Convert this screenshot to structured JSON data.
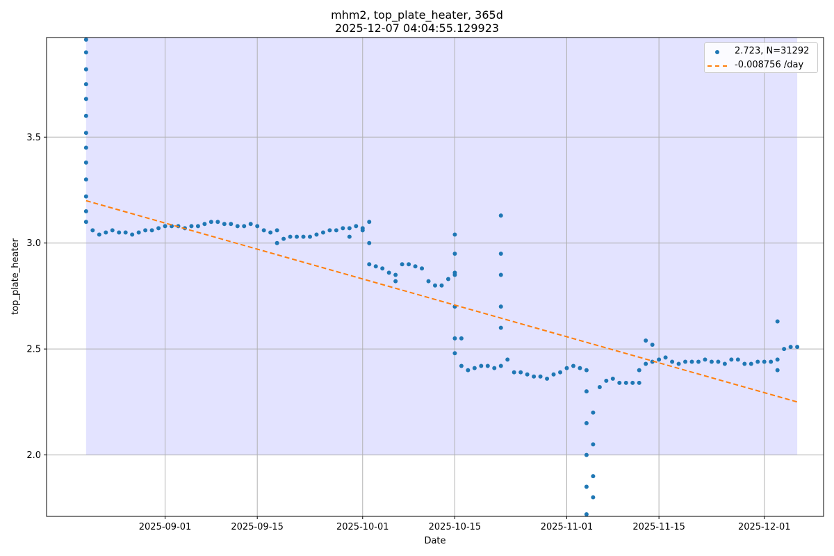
{
  "chart_data": {
    "type": "scatter",
    "title": "mhm2, top_plate_heater, 365d",
    "subtitle": "2025-12-07 04:04:55.129923",
    "xlabel": "Date",
    "ylabel": "top_plate_heater",
    "xlim": [
      "2025-08-14",
      "2025-12-10"
    ],
    "ylim": [
      1.71,
      3.97
    ],
    "x_ticks": [
      "2025-09-01",
      "2025-09-15",
      "2025-10-01",
      "2025-10-15",
      "2025-11-01",
      "2025-11-15",
      "2025-12-01"
    ],
    "y_ticks": [
      2.0,
      2.5,
      3.0,
      3.5
    ],
    "grid": true,
    "legend_position": "upper right",
    "shaded_band": {
      "x": [
        "2025-08-20",
        "2025-12-06"
      ],
      "y": [
        2.0,
        3.97
      ],
      "color": "#e3e3ff"
    },
    "series": [
      {
        "name": "2.723, N=31292",
        "type": "scatter",
        "color": "#1f77b4",
        "points": [
          [
            "2025-08-20",
            3.96
          ],
          [
            "2025-08-20",
            3.9
          ],
          [
            "2025-08-20",
            3.82
          ],
          [
            "2025-08-20",
            3.75
          ],
          [
            "2025-08-20",
            3.68
          ],
          [
            "2025-08-20",
            3.6
          ],
          [
            "2025-08-20",
            3.52
          ],
          [
            "2025-08-20",
            3.45
          ],
          [
            "2025-08-20",
            3.38
          ],
          [
            "2025-08-20",
            3.3
          ],
          [
            "2025-08-20",
            3.22
          ],
          [
            "2025-08-20",
            3.15
          ],
          [
            "2025-08-20",
            3.1
          ],
          [
            "2025-08-21",
            3.06
          ],
          [
            "2025-08-22",
            3.04
          ],
          [
            "2025-08-23",
            3.05
          ],
          [
            "2025-08-24",
            3.06
          ],
          [
            "2025-08-25",
            3.05
          ],
          [
            "2025-08-26",
            3.05
          ],
          [
            "2025-08-27",
            3.04
          ],
          [
            "2025-08-28",
            3.05
          ],
          [
            "2025-08-29",
            3.06
          ],
          [
            "2025-08-30",
            3.06
          ],
          [
            "2025-08-31",
            3.07
          ],
          [
            "2025-09-01",
            3.08
          ],
          [
            "2025-09-02",
            3.08
          ],
          [
            "2025-09-03",
            3.08
          ],
          [
            "2025-09-04",
            3.07
          ],
          [
            "2025-09-05",
            3.08
          ],
          [
            "2025-09-06",
            3.08
          ],
          [
            "2025-09-07",
            3.09
          ],
          [
            "2025-09-08",
            3.1
          ],
          [
            "2025-09-09",
            3.1
          ],
          [
            "2025-09-10",
            3.09
          ],
          [
            "2025-09-11",
            3.09
          ],
          [
            "2025-09-12",
            3.08
          ],
          [
            "2025-09-13",
            3.08
          ],
          [
            "2025-09-14",
            3.09
          ],
          [
            "2025-09-15",
            3.08
          ],
          [
            "2025-09-16",
            3.06
          ],
          [
            "2025-09-17",
            3.05
          ],
          [
            "2025-09-18",
            3.06
          ],
          [
            "2025-09-18",
            3.0
          ],
          [
            "2025-09-19",
            3.02
          ],
          [
            "2025-09-20",
            3.03
          ],
          [
            "2025-09-21",
            3.03
          ],
          [
            "2025-09-22",
            3.03
          ],
          [
            "2025-09-23",
            3.03
          ],
          [
            "2025-09-24",
            3.04
          ],
          [
            "2025-09-25",
            3.05
          ],
          [
            "2025-09-26",
            3.06
          ],
          [
            "2025-09-27",
            3.06
          ],
          [
            "2025-09-28",
            3.07
          ],
          [
            "2025-09-29",
            3.07
          ],
          [
            "2025-09-29",
            3.03
          ],
          [
            "2025-09-30",
            3.08
          ],
          [
            "2025-10-01",
            3.07
          ],
          [
            "2025-10-01",
            3.06
          ],
          [
            "2025-10-02",
            3.1
          ],
          [
            "2025-10-02",
            3.0
          ],
          [
            "2025-10-02",
            2.9
          ],
          [
            "2025-10-03",
            2.89
          ],
          [
            "2025-10-04",
            2.88
          ],
          [
            "2025-10-05",
            2.86
          ],
          [
            "2025-10-06",
            2.85
          ],
          [
            "2025-10-06",
            2.82
          ],
          [
            "2025-10-07",
            2.9
          ],
          [
            "2025-10-08",
            2.9
          ],
          [
            "2025-10-09",
            2.89
          ],
          [
            "2025-10-10",
            2.88
          ],
          [
            "2025-10-11",
            2.82
          ],
          [
            "2025-10-12",
            2.8
          ],
          [
            "2025-10-13",
            2.8
          ],
          [
            "2025-10-14",
            2.83
          ],
          [
            "2025-10-15",
            2.86
          ],
          [
            "2025-10-15",
            2.95
          ],
          [
            "2025-10-15",
            3.04
          ],
          [
            "2025-10-15",
            2.85
          ],
          [
            "2025-10-15",
            2.7
          ],
          [
            "2025-10-15",
            2.55
          ],
          [
            "2025-10-15",
            2.48
          ],
          [
            "2025-10-16",
            2.42
          ],
          [
            "2025-10-16",
            2.55
          ],
          [
            "2025-10-17",
            2.4
          ],
          [
            "2025-10-18",
            2.41
          ],
          [
            "2025-10-19",
            2.42
          ],
          [
            "2025-10-20",
            2.42
          ],
          [
            "2025-10-21",
            2.41
          ],
          [
            "2025-10-22",
            2.42
          ],
          [
            "2025-10-22",
            2.7
          ],
          [
            "2025-10-22",
            2.95
          ],
          [
            "2025-10-22",
            3.13
          ],
          [
            "2025-10-22",
            2.85
          ],
          [
            "2025-10-22",
            2.6
          ],
          [
            "2025-10-23",
            2.45
          ],
          [
            "2025-10-24",
            2.39
          ],
          [
            "2025-10-25",
            2.39
          ],
          [
            "2025-10-26",
            2.38
          ],
          [
            "2025-10-27",
            2.37
          ],
          [
            "2025-10-28",
            2.37
          ],
          [
            "2025-10-29",
            2.36
          ],
          [
            "2025-10-30",
            2.38
          ],
          [
            "2025-10-31",
            2.39
          ],
          [
            "2025-11-01",
            2.41
          ],
          [
            "2025-11-02",
            2.42
          ],
          [
            "2025-11-03",
            2.41
          ],
          [
            "2025-11-04",
            2.4
          ],
          [
            "2025-11-04",
            2.3
          ],
          [
            "2025-11-04",
            2.15
          ],
          [
            "2025-11-04",
            2.0
          ],
          [
            "2025-11-04",
            1.85
          ],
          [
            "2025-11-04",
            1.72
          ],
          [
            "2025-11-05",
            1.8
          ],
          [
            "2025-11-05",
            1.9
          ],
          [
            "2025-11-05",
            2.05
          ],
          [
            "2025-11-05",
            2.2
          ],
          [
            "2025-11-06",
            2.32
          ],
          [
            "2025-11-07",
            2.35
          ],
          [
            "2025-11-08",
            2.36
          ],
          [
            "2025-11-09",
            2.34
          ],
          [
            "2025-11-10",
            2.34
          ],
          [
            "2025-11-11",
            2.34
          ],
          [
            "2025-11-12",
            2.34
          ],
          [
            "2025-11-12",
            2.4
          ],
          [
            "2025-11-13",
            2.43
          ],
          [
            "2025-11-13",
            2.54
          ],
          [
            "2025-11-14",
            2.52
          ],
          [
            "2025-11-14",
            2.44
          ],
          [
            "2025-11-15",
            2.45
          ],
          [
            "2025-11-16",
            2.46
          ],
          [
            "2025-11-17",
            2.44
          ],
          [
            "2025-11-18",
            2.43
          ],
          [
            "2025-11-19",
            2.44
          ],
          [
            "2025-11-20",
            2.44
          ],
          [
            "2025-11-21",
            2.44
          ],
          [
            "2025-11-22",
            2.45
          ],
          [
            "2025-11-23",
            2.44
          ],
          [
            "2025-11-24",
            2.44
          ],
          [
            "2025-11-25",
            2.43
          ],
          [
            "2025-11-26",
            2.45
          ],
          [
            "2025-11-27",
            2.45
          ],
          [
            "2025-11-28",
            2.43
          ],
          [
            "2025-11-29",
            2.43
          ],
          [
            "2025-11-30",
            2.44
          ],
          [
            "2025-12-01",
            2.44
          ],
          [
            "2025-12-02",
            2.44
          ],
          [
            "2025-12-03",
            2.45
          ],
          [
            "2025-12-03",
            2.4
          ],
          [
            "2025-12-03",
            2.63
          ],
          [
            "2025-12-04",
            2.5
          ],
          [
            "2025-12-05",
            2.51
          ],
          [
            "2025-12-06",
            2.51
          ]
        ]
      },
      {
        "name": "-0.008756 /day",
        "type": "line",
        "style": "dashed",
        "color": "#ff7f0e",
        "x": [
          "2025-08-20",
          "2025-12-06"
        ],
        "y": [
          3.2,
          2.25
        ]
      }
    ]
  }
}
